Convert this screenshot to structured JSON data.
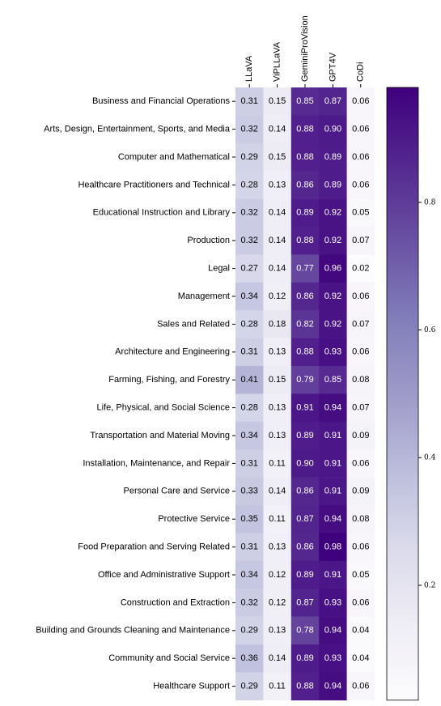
{
  "chart_data": {
    "type": "heatmap",
    "rows": [
      "Business and Financial Operations",
      "Arts, Design, Entertainment, Sports, and Media",
      "Computer and Mathematical",
      "Healthcare Practitioners and Technical",
      "Educational Instruction and Library",
      "Production",
      "Legal",
      "Management",
      "Sales and Related",
      "Architecture and Engineering",
      "Farming, Fishing, and Forestry",
      "Life, Physical, and Social Science",
      "Transportation and Material Moving",
      "Installation, Maintenance, and Repair",
      "Personal Care and Service",
      "Protective Service",
      "Food Preparation and Serving Related",
      "Office and Administrative Support",
      "Construction and Extraction",
      "Building and Grounds Cleaning and Maintenance",
      "Community and Social Service",
      "Healthcare Support"
    ],
    "columns": [
      "LLaVA",
      "ViPLLaVA",
      "GeminiProVision",
      "GPT4V",
      "CoDi"
    ],
    "values": [
      [
        0.31,
        0.15,
        0.85,
        0.87,
        0.06
      ],
      [
        0.32,
        0.14,
        0.88,
        0.9,
        0.06
      ],
      [
        0.29,
        0.15,
        0.88,
        0.89,
        0.06
      ],
      [
        0.28,
        0.13,
        0.86,
        0.89,
        0.06
      ],
      [
        0.32,
        0.14,
        0.89,
        0.92,
        0.05
      ],
      [
        0.32,
        0.14,
        0.88,
        0.92,
        0.07
      ],
      [
        0.27,
        0.14,
        0.77,
        0.96,
        0.02
      ],
      [
        0.34,
        0.12,
        0.86,
        0.92,
        0.06
      ],
      [
        0.28,
        0.18,
        0.82,
        0.92,
        0.07
      ],
      [
        0.31,
        0.13,
        0.88,
        0.93,
        0.06
      ],
      [
        0.41,
        0.15,
        0.79,
        0.85,
        0.08
      ],
      [
        0.28,
        0.13,
        0.91,
        0.94,
        0.07
      ],
      [
        0.34,
        0.13,
        0.89,
        0.91,
        0.09
      ],
      [
        0.31,
        0.11,
        0.9,
        0.91,
        0.06
      ],
      [
        0.33,
        0.14,
        0.86,
        0.91,
        0.09
      ],
      [
        0.35,
        0.11,
        0.87,
        0.94,
        0.08
      ],
      [
        0.31,
        0.13,
        0.86,
        0.98,
        0.06
      ],
      [
        0.34,
        0.12,
        0.89,
        0.91,
        0.05
      ],
      [
        0.32,
        0.12,
        0.87,
        0.93,
        0.06
      ],
      [
        0.29,
        0.13,
        0.78,
        0.94,
        0.04
      ],
      [
        0.36,
        0.14,
        0.89,
        0.93,
        0.04
      ],
      [
        0.29,
        0.11,
        0.88,
        0.94,
        0.06
      ]
    ],
    "value_labels": [
      [
        "0.31",
        "0.15",
        "0.85",
        "0.87",
        "0.06"
      ],
      [
        "0.32",
        "0.14",
        "0.88",
        "0.90",
        "0.06"
      ],
      [
        "0.29",
        "0.15",
        "0.88",
        "0.89",
        "0.06"
      ],
      [
        "0.28",
        "0.13",
        "0.86",
        "0.89",
        "0.06"
      ],
      [
        "0.32",
        "0.14",
        "0.89",
        "0.92",
        "0.05"
      ],
      [
        "0.32",
        "0.14",
        "0.88",
        "0.92",
        "0.07"
      ],
      [
        "0.27",
        "0.14",
        "0.77",
        "0.96",
        "0.02"
      ],
      [
        "0.34",
        "0.12",
        "0.86",
        "0.92",
        "0.06"
      ],
      [
        "0.28",
        "0.18",
        "0.82",
        "0.92",
        "0.07"
      ],
      [
        "0.31",
        "0.13",
        "0.88",
        "0.93",
        "0.06"
      ],
      [
        "0.41",
        "0.15",
        "0.79",
        "0.85",
        "0.08"
      ],
      [
        "0.28",
        "0.13",
        "0.91",
        "0.94",
        "0.07"
      ],
      [
        "0.34",
        "0.13",
        "0.89",
        "0.91",
        "0.09"
      ],
      [
        "0.31",
        "0.11",
        "0.90",
        "0.91",
        "0.06"
      ],
      [
        "0.33",
        "0.14",
        "0.86",
        "0.91",
        "0.09"
      ],
      [
        "0.35",
        "0.11",
        "0.87",
        "0.94",
        "0.08"
      ],
      [
        "0.31",
        "0.13",
        "0.86",
        "0.98",
        "0.06"
      ],
      [
        "0.34",
        "0.12",
        "0.89",
        "0.91",
        "0.05"
      ],
      [
        "0.32",
        "0.12",
        "0.87",
        "0.93",
        "0.06"
      ],
      [
        "0.29",
        "0.13",
        "0.78",
        "0.94",
        "0.04"
      ],
      [
        "0.36",
        "0.14",
        "0.89",
        "0.93",
        "0.04"
      ],
      [
        "0.29",
        "0.11",
        "0.88",
        "0.94",
        "0.06"
      ]
    ],
    "colormap": "Purples",
    "clim": [
      0.02,
      0.98
    ],
    "cticks": [
      0.2,
      0.4,
      0.6,
      0.8
    ]
  }
}
